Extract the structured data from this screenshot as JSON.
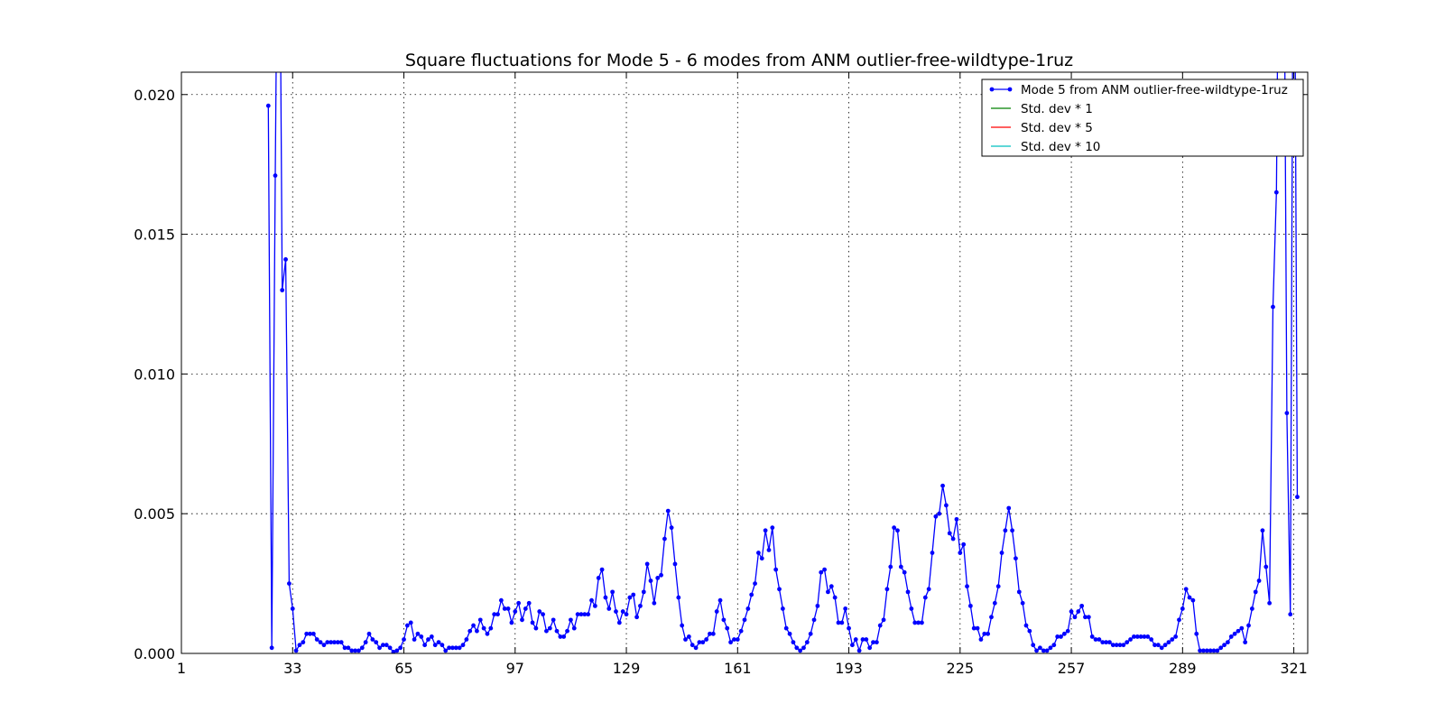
{
  "chart_data": {
    "type": "line",
    "title": "Square fluctuations for Mode 5 - 6 modes from ANM outlier-free-wildtype-1ruz",
    "xlabel": "",
    "ylabel": "",
    "xlim": [
      1,
      325
    ],
    "ylim": [
      0,
      0.0208
    ],
    "grid": true,
    "legend_position": "top-right",
    "x_ticks": [
      1,
      33,
      65,
      97,
      129,
      161,
      193,
      225,
      257,
      289,
      321
    ],
    "y_ticks": [
      0.0,
      0.005,
      0.01,
      0.015,
      0.02
    ],
    "y_tick_labels": [
      "0.000",
      "0.005",
      "0.010",
      "0.015",
      "0.020"
    ],
    "x_start": 26,
    "series": [
      {
        "name": "Mode 5 from ANM outlier-free-wildtype-1ruz",
        "color": "#0000ff",
        "marker": "dot",
        "values": [
          0.0196,
          0.0002,
          0.0171,
          0.032,
          0.013,
          0.0141,
          0.0025,
          0.0016,
          0.0001,
          0.0003,
          0.0004,
          0.0007,
          0.0007,
          0.0007,
          0.0005,
          0.0004,
          0.0003,
          0.0004,
          0.0004,
          0.0004,
          0.0004,
          0.0004,
          0.0002,
          0.0002,
          0.0001,
          0.0001,
          0.0001,
          0.0002,
          0.0004,
          0.0007,
          0.0005,
          0.0004,
          0.0002,
          0.0003,
          0.0003,
          0.0002,
          5e-05,
          0.0001,
          0.0002,
          0.0005,
          0.001,
          0.0011,
          0.0005,
          0.0007,
          0.0006,
          0.0003,
          0.0005,
          0.0006,
          0.0003,
          0.0004,
          0.0003,
          0.0001,
          0.0002,
          0.0002,
          0.0002,
          0.0002,
          0.0003,
          0.0005,
          0.0008,
          0.001,
          0.0008,
          0.0012,
          0.0009,
          0.0007,
          0.0009,
          0.0014,
          0.0014,
          0.0019,
          0.0016,
          0.0016,
          0.0011,
          0.0015,
          0.0018,
          0.0012,
          0.0016,
          0.0018,
          0.0011,
          0.0009,
          0.0015,
          0.0014,
          0.0008,
          0.0009,
          0.0012,
          0.0008,
          0.0006,
          0.0006,
          0.0008,
          0.0012,
          0.0009,
          0.0014,
          0.0014,
          0.0014,
          0.0014,
          0.0019,
          0.0017,
          0.0027,
          0.003,
          0.002,
          0.0016,
          0.0022,
          0.0015,
          0.0011,
          0.0015,
          0.0014,
          0.002,
          0.0021,
          0.0013,
          0.0017,
          0.0022,
          0.0032,
          0.0026,
          0.0018,
          0.0027,
          0.0028,
          0.0041,
          0.0051,
          0.0045,
          0.0032,
          0.002,
          0.001,
          0.0005,
          0.0006,
          0.0003,
          0.0002,
          0.0004,
          0.0004,
          0.0005,
          0.0007,
          0.0007,
          0.0015,
          0.0019,
          0.0012,
          0.0009,
          0.0004,
          0.0005,
          0.0005,
          0.0008,
          0.0012,
          0.0016,
          0.0021,
          0.0025,
          0.0036,
          0.0034,
          0.0044,
          0.0037,
          0.0045,
          0.003,
          0.0023,
          0.0016,
          0.0009,
          0.0007,
          0.0004,
          0.0002,
          0.0001,
          0.0002,
          0.0004,
          0.0007,
          0.0012,
          0.0017,
          0.0029,
          0.003,
          0.0022,
          0.0024,
          0.002,
          0.0011,
          0.0011,
          0.0016,
          0.0009,
          0.0003,
          0.0005,
          0.0001,
          0.0005,
          0.0005,
          0.0002,
          0.0004,
          0.0004,
          0.001,
          0.0012,
          0.0023,
          0.0031,
          0.0045,
          0.0044,
          0.0031,
          0.0029,
          0.0022,
          0.0016,
          0.0011,
          0.0011,
          0.0011,
          0.002,
          0.0023,
          0.0036,
          0.0049,
          0.005,
          0.006,
          0.0053,
          0.0043,
          0.0041,
          0.0048,
          0.0036,
          0.0039,
          0.0024,
          0.0017,
          0.0009,
          0.0009,
          0.0005,
          0.0007,
          0.0007,
          0.0013,
          0.0018,
          0.0024,
          0.0036,
          0.0044,
          0.0052,
          0.0044,
          0.0034,
          0.0022,
          0.0018,
          0.001,
          0.0008,
          0.0003,
          0.0001,
          0.0002,
          0.0001,
          0.0001,
          0.0002,
          0.0003,
          0.0006,
          0.0006,
          0.0007,
          0.0008,
          0.0015,
          0.0013,
          0.0015,
          0.0017,
          0.0013,
          0.0013,
          0.0006,
          0.0005,
          0.0005,
          0.0004,
          0.0004,
          0.0004,
          0.0003,
          0.0003,
          0.0003,
          0.0003,
          0.0004,
          0.0005,
          0.0006,
          0.0006,
          0.0006,
          0.0006,
          0.0006,
          0.0005,
          0.0003,
          0.0003,
          0.0002,
          0.0003,
          0.0004,
          0.0005,
          0.0006,
          0.0012,
          0.0016,
          0.0023,
          0.002,
          0.0019,
          0.0007,
          0.0001,
          0.0001,
          0.0001,
          0.0001,
          0.0001,
          0.0001,
          0.0002,
          0.0003,
          0.0004,
          0.0006,
          0.0007,
          0.0008,
          0.0009,
          0.0004,
          0.001,
          0.0016,
          0.0022,
          0.0026,
          0.0044,
          0.0031,
          0.0018,
          0.0124,
          0.0165,
          0.032,
          0.03,
          0.0086,
          0.0014,
          0.032,
          0.0056
        ]
      },
      {
        "name": "Std. dev * 1",
        "color": "#008000",
        "values": []
      },
      {
        "name": "Std. dev * 5",
        "color": "#ff0000",
        "values": []
      },
      {
        "name": "Std. dev * 10",
        "color": "#00bfbf",
        "values": []
      }
    ]
  }
}
